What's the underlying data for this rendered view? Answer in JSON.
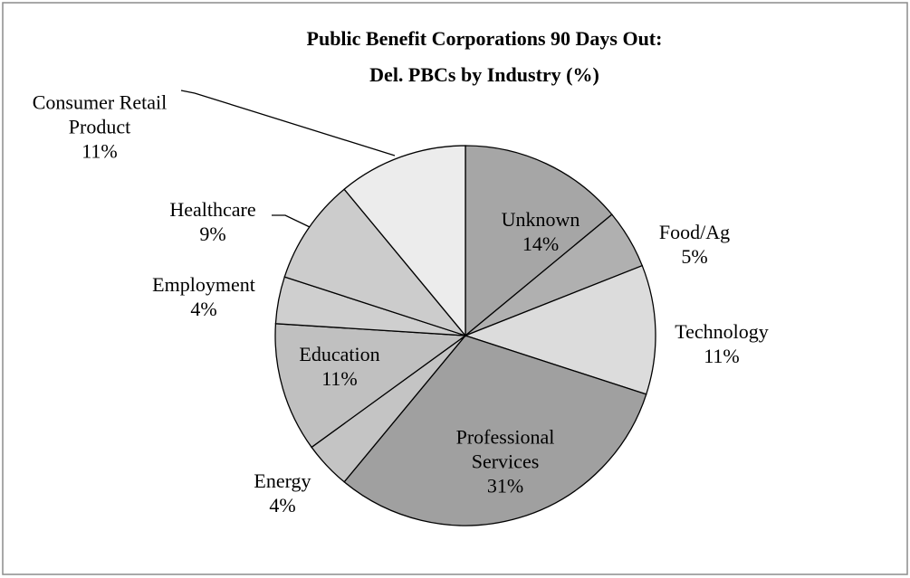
{
  "chart_data": {
    "type": "pie",
    "title": [
      "Public Benefit Corporations 90 Days Out:",
      "Del. PBCs by Industry (%)"
    ],
    "categories": [
      "Unknown",
      "Food/Ag",
      "Technology",
      "Professional Services",
      "Energy",
      "Education",
      "Employment",
      "Healthcare",
      "Consumer Retail Product"
    ],
    "values": [
      14,
      5,
      11,
      31,
      4,
      11,
      4,
      9,
      11
    ],
    "value_labels": [
      "14%",
      "5%",
      "11%",
      "31%",
      "4%",
      "11%",
      "4%",
      "9%",
      "11%"
    ],
    "colors": [
      "#a6a6a6",
      "#b0b0b0",
      "#dcdcdc",
      "#a0a0a0",
      "#c4c4c4",
      "#c0c0c0",
      "#cfcfcf",
      "#cccccc",
      "#ececec"
    ]
  }
}
